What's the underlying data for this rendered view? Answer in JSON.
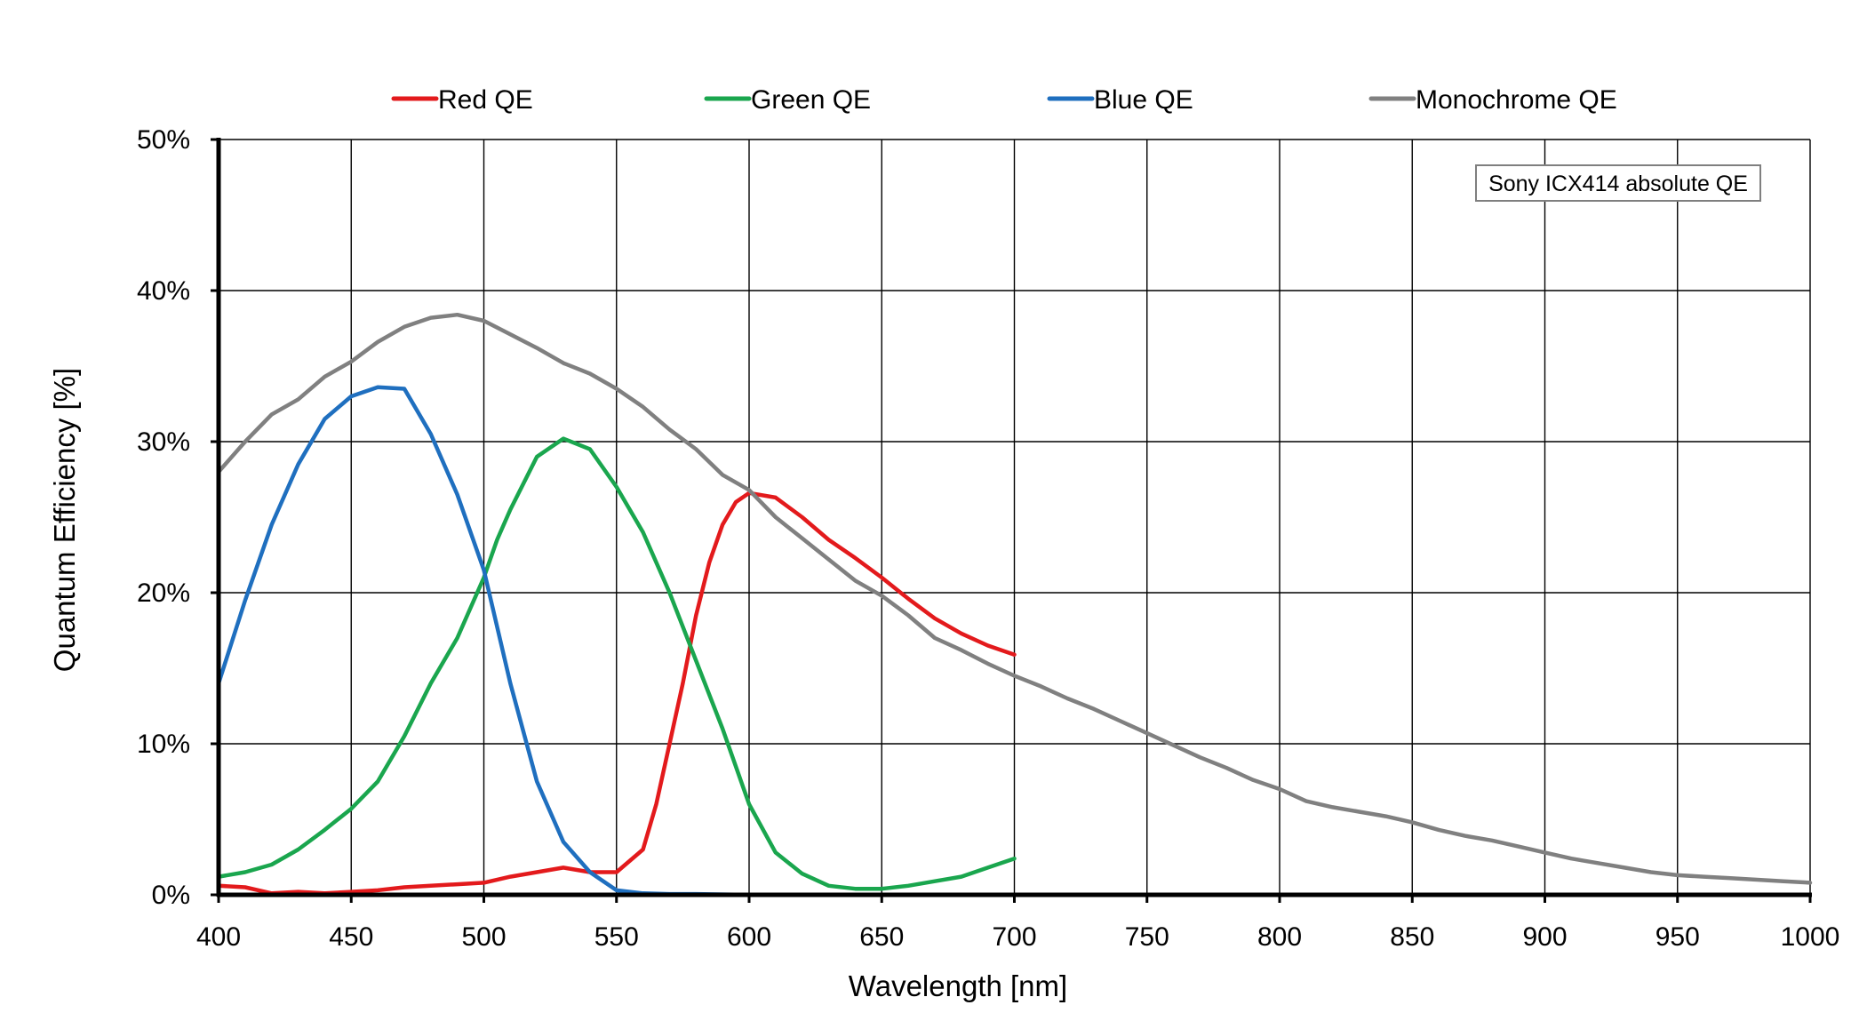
{
  "chart_data": {
    "type": "line",
    "title": "",
    "xlabel": "Wavelength [nm]",
    "ylabel": "Quantum Efficiency [%]",
    "xlim": [
      400,
      1000
    ],
    "ylim": [
      0,
      50
    ],
    "x_ticks": [
      400,
      450,
      500,
      550,
      600,
      650,
      700,
      750,
      800,
      850,
      900,
      950,
      1000
    ],
    "x_tick_labels": [
      "400",
      "450",
      "500",
      "550",
      "600",
      "650",
      "700",
      "750",
      "800",
      "850",
      "900",
      "950",
      "1000"
    ],
    "y_ticks": [
      0,
      10,
      20,
      30,
      40,
      50
    ],
    "y_tick_labels": [
      "0%",
      "10%",
      "20%",
      "30%",
      "40%",
      "50%"
    ],
    "grid": true,
    "legend_position": "top",
    "annotation": "Sony ICX414 absolute QE",
    "series": [
      {
        "name": "Red QE",
        "color": "#e31a1c",
        "x": [
          400,
          410,
          420,
          430,
          440,
          450,
          460,
          470,
          480,
          490,
          500,
          510,
          520,
          530,
          540,
          550,
          560,
          565,
          570,
          575,
          580,
          585,
          590,
          595,
          600,
          610,
          620,
          630,
          640,
          650,
          660,
          670,
          680,
          690,
          700
        ],
        "y": [
          0.6,
          0.5,
          0.1,
          0.2,
          0.1,
          0.2,
          0.3,
          0.5,
          0.6,
          0.7,
          0.8,
          1.2,
          1.5,
          1.8,
          1.5,
          1.5,
          3.0,
          6.0,
          10.0,
          14.0,
          18.5,
          22.0,
          24.5,
          26.0,
          26.6,
          26.3,
          25.0,
          23.5,
          22.3,
          21.0,
          19.6,
          18.3,
          17.3,
          16.5,
          15.9
        ]
      },
      {
        "name": "Green QE",
        "color": "#1aa64e",
        "x": [
          400,
          410,
          420,
          430,
          440,
          450,
          460,
          470,
          480,
          490,
          500,
          505,
          510,
          520,
          530,
          540,
          550,
          560,
          570,
          580,
          590,
          600,
          610,
          620,
          630,
          640,
          650,
          660,
          670,
          680,
          690,
          700
        ],
        "y": [
          1.2,
          1.5,
          2.0,
          3.0,
          4.3,
          5.7,
          7.5,
          10.5,
          14.0,
          17.0,
          21.0,
          23.5,
          25.5,
          29.0,
          30.2,
          29.5,
          27.0,
          24.0,
          20.0,
          15.5,
          11.0,
          6.0,
          2.8,
          1.4,
          0.6,
          0.4,
          0.4,
          0.6,
          0.9,
          1.2,
          1.8,
          2.4
        ]
      },
      {
        "name": "Blue QE",
        "color": "#1f6fbf",
        "x": [
          400,
          410,
          420,
          430,
          440,
          450,
          460,
          470,
          480,
          490,
          500,
          510,
          520,
          530,
          540,
          550,
          560,
          570,
          580,
          600,
          650,
          700
        ],
        "y": [
          14.0,
          19.5,
          24.5,
          28.5,
          31.5,
          33.0,
          33.6,
          33.5,
          30.5,
          26.5,
          21.5,
          14.0,
          7.5,
          3.5,
          1.5,
          0.3,
          0.1,
          0.05,
          0.05,
          0.0,
          0.0,
          0.0
        ]
      },
      {
        "name": "Monochrome QE",
        "color": "#808080",
        "x": [
          400,
          410,
          420,
          430,
          440,
          450,
          460,
          470,
          480,
          490,
          500,
          510,
          520,
          530,
          540,
          550,
          560,
          570,
          580,
          590,
          600,
          610,
          620,
          630,
          640,
          650,
          660,
          670,
          680,
          690,
          700,
          710,
          720,
          730,
          740,
          750,
          760,
          770,
          780,
          790,
          800,
          810,
          820,
          830,
          840,
          850,
          860,
          870,
          880,
          890,
          900,
          910,
          920,
          930,
          940,
          950,
          960,
          970,
          980,
          990,
          1000
        ],
        "y": [
          28.0,
          30.0,
          31.8,
          32.8,
          34.3,
          35.3,
          36.6,
          37.6,
          38.2,
          38.4,
          38.0,
          37.1,
          36.2,
          35.2,
          34.5,
          33.5,
          32.3,
          30.8,
          29.5,
          27.8,
          26.8,
          25.0,
          23.6,
          22.2,
          20.8,
          19.8,
          18.5,
          17.0,
          16.2,
          15.3,
          14.5,
          13.8,
          13.0,
          12.3,
          11.5,
          10.7,
          9.9,
          9.1,
          8.4,
          7.6,
          7.0,
          6.2,
          5.8,
          5.5,
          5.2,
          4.8,
          4.3,
          3.9,
          3.6,
          3.2,
          2.8,
          2.4,
          2.1,
          1.8,
          1.5,
          1.3,
          1.2,
          1.1,
          1.0,
          0.9,
          0.8
        ]
      }
    ]
  }
}
